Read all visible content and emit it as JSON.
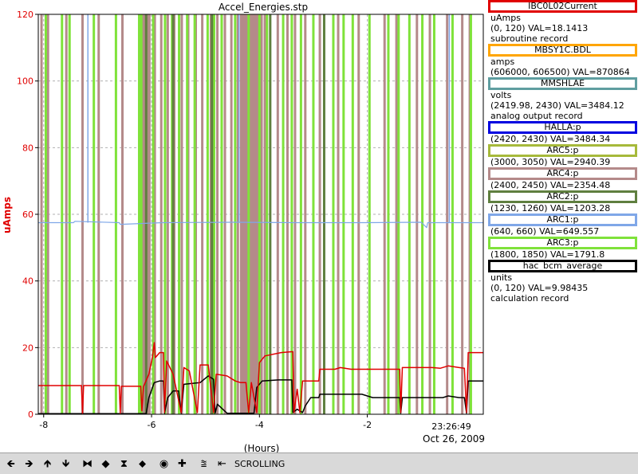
{
  "chart_data": {
    "type": "line",
    "title": "Accel_Energies.stp",
    "xlabel": "(Hours)",
    "ylabel": "uAmps",
    "ylabel_color": "#e00000",
    "xlim": [
      -8.1,
      0.15
    ],
    "ylim": [
      0,
      120
    ],
    "xticks": [
      -8,
      -6,
      -4,
      -2
    ],
    "yticks": [
      0,
      20,
      40,
      60,
      80,
      100,
      120
    ],
    "time_label": "23:26:49",
    "date_label": "Oct 26, 2009",
    "grid": true,
    "series": [
      {
        "name": "IBC0L02Current",
        "color": "#e00000",
        "width": 1.5,
        "points": [
          [
            -8.1,
            8.6
          ],
          [
            -7.3,
            8.6
          ],
          [
            -7.28,
            0.3
          ],
          [
            -7.26,
            8.6
          ],
          [
            -6.6,
            8.6
          ],
          [
            -6.58,
            0.3
          ],
          [
            -6.56,
            8.4
          ],
          [
            -6.2,
            8.4
          ],
          [
            -6.18,
            1.0
          ],
          [
            -6.15,
            8.3
          ],
          [
            -6.05,
            12.0
          ],
          [
            -5.98,
            17.5
          ],
          [
            -5.95,
            21.5
          ],
          [
            -5.93,
            17.0
          ],
          [
            -5.85,
            18.5
          ],
          [
            -5.78,
            18.5
          ],
          [
            -5.76,
            0.5
          ],
          [
            -5.72,
            16.0
          ],
          [
            -5.6,
            12.0
          ],
          [
            -5.45,
            0.5
          ],
          [
            -5.4,
            14.0
          ],
          [
            -5.3,
            13.0
          ],
          [
            -5.15,
            0.5
          ],
          [
            -5.1,
            14.8
          ],
          [
            -4.95,
            14.8
          ],
          [
            -4.85,
            0.5
          ],
          [
            -4.8,
            12.0
          ],
          [
            -4.6,
            11.5
          ],
          [
            -4.45,
            10.0
          ],
          [
            -4.35,
            9.5
          ],
          [
            -4.25,
            9.5
          ],
          [
            -4.2,
            0.5
          ],
          [
            -4.15,
            9.5
          ],
          [
            -4.05,
            0.5
          ],
          [
            -4.0,
            15.5
          ],
          [
            -3.9,
            17.5
          ],
          [
            -3.6,
            18.5
          ],
          [
            -3.38,
            18.8
          ],
          [
            -3.36,
            0.5
          ],
          [
            -3.3,
            7.5
          ],
          [
            -3.25,
            0.5
          ],
          [
            -3.2,
            10.0
          ],
          [
            -2.9,
            10.0
          ],
          [
            -2.88,
            13.5
          ],
          [
            -2.6,
            13.5
          ],
          [
            -2.5,
            14.0
          ],
          [
            -2.3,
            13.5
          ],
          [
            -1.4,
            13.5
          ],
          [
            -1.38,
            0.5
          ],
          [
            -1.35,
            14.0
          ],
          [
            -0.8,
            14.0
          ],
          [
            -0.65,
            13.8
          ],
          [
            -0.5,
            14.5
          ],
          [
            -0.3,
            14.0
          ],
          [
            -0.2,
            13.8
          ],
          [
            -0.16,
            0.5
          ],
          [
            -0.13,
            18.5
          ],
          [
            0.15,
            18.5
          ]
        ]
      },
      {
        "name": "hac_bcm_average",
        "color": "#000000",
        "width": 1.5,
        "points": [
          [
            -8.1,
            0.2
          ],
          [
            -6.1,
            0.2
          ],
          [
            -6.05,
            5.0
          ],
          [
            -5.95,
            9.5
          ],
          [
            -5.85,
            10.0
          ],
          [
            -5.78,
            10.0
          ],
          [
            -5.76,
            0.3
          ],
          [
            -5.7,
            5.0
          ],
          [
            -5.6,
            7.0
          ],
          [
            -5.5,
            7.0
          ],
          [
            -5.45,
            0.3
          ],
          [
            -5.4,
            9.0
          ],
          [
            -5.1,
            9.5
          ],
          [
            -4.95,
            11.5
          ],
          [
            -4.85,
            10.5
          ],
          [
            -4.82,
            0.3
          ],
          [
            -4.78,
            3.0
          ],
          [
            -4.6,
            0.3
          ],
          [
            -4.1,
            0.3
          ],
          [
            -4.05,
            8.0
          ],
          [
            -3.95,
            10.0
          ],
          [
            -3.65,
            10.3
          ],
          [
            -3.4,
            10.3
          ],
          [
            -3.38,
            0.5
          ],
          [
            -3.3,
            1.5
          ],
          [
            -3.2,
            0.5
          ],
          [
            -3.15,
            2.5
          ],
          [
            -3.05,
            5.0
          ],
          [
            -2.9,
            5.0
          ],
          [
            -2.88,
            6.0
          ],
          [
            -2.1,
            6.0
          ],
          [
            -1.9,
            5.0
          ],
          [
            -1.4,
            5.0
          ],
          [
            -1.38,
            0.3
          ],
          [
            -1.35,
            5.0
          ],
          [
            -0.6,
            5.0
          ],
          [
            -0.5,
            5.5
          ],
          [
            -0.3,
            5.0
          ],
          [
            -0.2,
            5.0
          ],
          [
            -0.16,
            0.3
          ],
          [
            -0.13,
            10.0
          ],
          [
            0.15,
            10.0
          ]
        ]
      },
      {
        "name": "ARC1:p",
        "color": "#7fa7e8",
        "width": 1.2,
        "points": [
          [
            -8.1,
            57.5
          ],
          [
            -7.45,
            57.5
          ],
          [
            -7.42,
            57.9
          ],
          [
            -6.6,
            57.5
          ],
          [
            -6.58,
            57.0
          ],
          [
            -5.8,
            57.5
          ],
          [
            -4.5,
            57.6
          ],
          [
            -3.3,
            57.5
          ],
          [
            -2.0,
            57.5
          ],
          [
            -1.0,
            57.6
          ],
          [
            -0.9,
            56.0
          ],
          [
            -0.88,
            57.5
          ],
          [
            0.15,
            57.5
          ]
        ],
        "spikes": [
          -7.18,
          -4.38,
          -0.48
        ]
      }
    ],
    "band_series": [
      {
        "name": "ARC4:p",
        "color": "#b48a8a",
        "positions": [
          -8.04,
          -7.92,
          -7.58,
          -7.28,
          -6.98,
          -6.54,
          -6.15,
          -6.04,
          -5.94,
          -5.82,
          -5.7,
          -5.58,
          -5.44,
          -5.32,
          -5.18,
          -5.06,
          -4.9,
          -4.78,
          -4.64,
          -4.52,
          -4.4,
          -4.34,
          -4.3,
          -4.25,
          -4.18,
          -4.1,
          -4.02,
          -3.96,
          -3.9,
          -3.66,
          -3.48,
          -3.34,
          -3.15,
          -2.88,
          -2.54,
          -2.16,
          -1.68,
          -1.46,
          -1.08,
          -0.84,
          -0.52,
          -0.24,
          -0.1
        ]
      },
      {
        "name": "ARC3:p",
        "color": "#7fe23a",
        "positions": [
          -7.96,
          -7.66,
          -7.52,
          -7.07,
          -6.66,
          -6.23,
          -6.19,
          -5.97,
          -5.75,
          -5.62,
          -5.49,
          -5.34,
          -5.2,
          -4.96,
          -4.84,
          -4.7,
          -4.45,
          -4.2,
          -4.0,
          -3.86,
          -3.56,
          -3.4,
          -3.23,
          -3.0,
          -2.63,
          -2.44,
          -2.27,
          -1.96,
          -1.61,
          -1.42,
          -1.22,
          -0.98,
          -0.76,
          -0.42,
          -0.08
        ]
      },
      {
        "name": "ARC2:p",
        "color": "#5f7f3f",
        "positions": [
          -6.1,
          -5.6,
          -4.88,
          -3.8,
          -2.8
        ]
      }
    ],
    "shaded_regions": [
      {
        "x": [
          -4.33,
          -3.94
        ],
        "color": "#b48a8a"
      },
      {
        "x": [
          -6.2,
          -6.05
        ],
        "color": "#b48a8a"
      }
    ]
  },
  "legend": [
    {
      "name": "IBC0L02Current",
      "color": "#e00000",
      "lines": [
        "uAmps",
        "(0, 120) VAL=18.1413",
        "subroutine record"
      ]
    },
    {
      "name": "MBSY1C.BDL",
      "color": "#ffa500",
      "lines": [
        "amps",
        "(606000, 606500) VAL=870864"
      ]
    },
    {
      "name": "MMSHLAE",
      "color": "#5f9ea0",
      "lines": [
        "volts",
        "(2419.98, 2430) VAL=3484.12",
        "analog output record"
      ]
    },
    {
      "name": "HALLA:p",
      "color": "#0000e0",
      "lines": [
        "(2420, 2430) VAL=3484.34"
      ]
    },
    {
      "name": "ARC5:p",
      "color": "#a6b93a",
      "lines": [
        "(3000, 3050) VAL=2940.39"
      ]
    },
    {
      "name": "ARC4:p",
      "color": "#b48a8a",
      "lines": [
        "(2400, 2450) VAL=2354.48"
      ]
    },
    {
      "name": "ARC2:p",
      "color": "#5f7f3f",
      "lines": [
        "(1230, 1260) VAL=1203.28"
      ]
    },
    {
      "name": "ARC1:p",
      "color": "#7fa7e8",
      "lines": [
        "(640, 660) VAL=649.557"
      ]
    },
    {
      "name": "ARC3:p",
      "color": "#7fe23a",
      "lines": [
        "(1800, 1850) VAL=1791.8"
      ]
    },
    {
      "name": "hac_bcm_average",
      "color": "#000000",
      "lines": [
        "units",
        "(0, 120) VAL=9.98435",
        "calculation record"
      ]
    }
  ],
  "toolbar": {
    "buttons": [
      {
        "name": "pan-left-button",
        "icon": "arrow-left-icon",
        "glyph": "🡸"
      },
      {
        "name": "pan-right-button",
        "icon": "arrow-right-icon",
        "glyph": "🡺"
      },
      {
        "name": "pan-up-button",
        "icon": "arrow-up-icon",
        "glyph": "🡹"
      },
      {
        "name": "pan-down-button",
        "icon": "arrow-down-icon",
        "glyph": "🡻"
      },
      {
        "name": "zoom-in-x-button",
        "icon": "zoom-in-x-icon",
        "glyph": "⧓"
      },
      {
        "name": "zoom-out-x-button",
        "icon": "zoom-out-x-icon",
        "glyph": "◆"
      },
      {
        "name": "zoom-in-y-button",
        "icon": "zoom-in-y-icon",
        "glyph": "⧗"
      },
      {
        "name": "zoom-out-y-button",
        "icon": "zoom-out-y-icon",
        "glyph": "⬥"
      },
      {
        "name": "auto-zoom-button",
        "icon": "target-icon",
        "glyph": "◉"
      },
      {
        "name": "add-button",
        "icon": "plus-icon",
        "glyph": "✚"
      },
      {
        "name": "stagger-button",
        "icon": "stagger-icon",
        "glyph": "⩰"
      },
      {
        "name": "back-button",
        "icon": "back-icon",
        "glyph": "⇤"
      }
    ],
    "mode_label": "SCROLLING"
  }
}
